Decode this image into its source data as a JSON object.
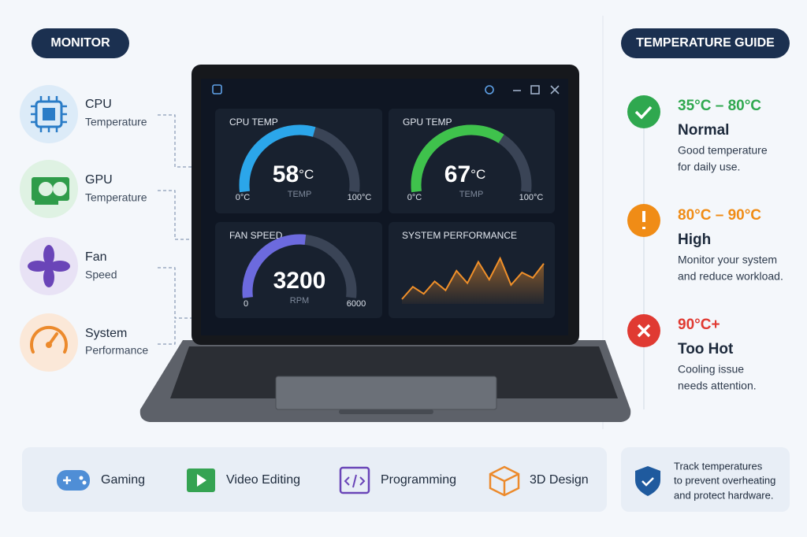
{
  "monitor": {
    "title": "MONITOR",
    "items": [
      {
        "title": "CPU",
        "subtitle": "Temperature"
      },
      {
        "title": "GPU",
        "subtitle": "Temperature"
      },
      {
        "title": "Fan",
        "subtitle": "Speed"
      },
      {
        "title": "System",
        "subtitle": "Performance"
      }
    ]
  },
  "app": {
    "gauges": [
      {
        "title": "CPU TEMP",
        "value": 58,
        "unit": "°C",
        "caption": "TEMP",
        "color": "#2ba6ea",
        "range": [
          {
            "value": 0,
            "label": "0°C"
          },
          {
            "value": 100,
            "label": "100°C"
          }
        ]
      },
      {
        "title": "GPU TEMP",
        "value": 67,
        "unit": "°C",
        "caption": "TEMP",
        "color": "#3fc24c",
        "range": [
          {
            "value": 0,
            "label": "0°C"
          },
          {
            "value": 100,
            "label": "100°C"
          }
        ]
      },
      {
        "title": "FAN SPEED",
        "value": 3200,
        "caption": "RPM",
        "color": "#6c6ade",
        "range": [
          0,
          6000
        ]
      }
    ],
    "performance": {
      "title": "SYSTEM PERFORMANCE",
      "color": "#f0902a",
      "values": [
        20,
        34,
        26,
        40,
        30,
        52,
        38,
        62,
        42,
        66,
        36,
        50,
        44,
        60
      ]
    }
  },
  "guide": {
    "title": "TEMPERATURE GUIDE",
    "levels": [
      {
        "range": "35°C – 80°C",
        "label": "Normal",
        "color": "#2fa84f",
        "description": [
          "Good temperature",
          "for daily use."
        ]
      },
      {
        "range": "80°C – 90°C",
        "label": "High",
        "color": "#f08c16",
        "description": [
          "Monitor your system",
          "and reduce workload."
        ]
      },
      {
        "range": "90°C+",
        "label": "Too Hot",
        "color": "#e03a32",
        "description": [
          "Cooling issue",
          "needs attention."
        ]
      }
    ]
  },
  "use_cases": [
    "Gaming",
    "Video Editing",
    "Programming",
    "3D Design"
  ],
  "note": [
    "Track temperatures",
    "to prevent overheating",
    "and protect hardware."
  ]
}
